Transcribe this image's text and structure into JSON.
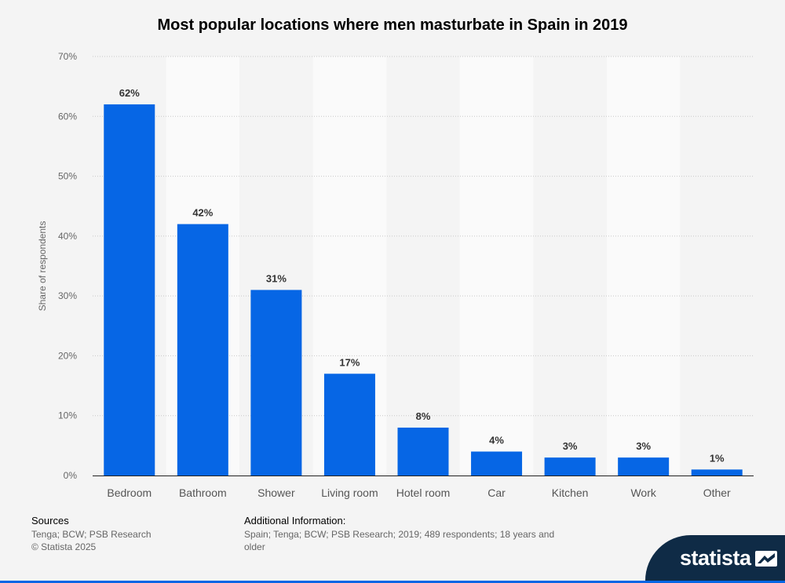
{
  "chart_data": {
    "type": "bar",
    "title": "Most popular locations where men masturbate in Spain in 2019",
    "xlabel": "",
    "ylabel": "Share of respondents",
    "categories": [
      "Bedroom",
      "Bathroom",
      "Shower",
      "Living room",
      "Hotel room",
      "Car",
      "Kitchen",
      "Work",
      "Other"
    ],
    "values": [
      62,
      42,
      31,
      17,
      8,
      4,
      3,
      3,
      1
    ],
    "data_labels": [
      "62%",
      "42%",
      "31%",
      "17%",
      "8%",
      "4%",
      "3%",
      "3%",
      "1%"
    ],
    "ylim": [
      0,
      70
    ],
    "yticks": [
      0,
      10,
      20,
      30,
      40,
      50,
      60,
      70
    ],
    "ytick_labels": [
      "0%",
      "10%",
      "20%",
      "30%",
      "40%",
      "50%",
      "60%",
      "70%"
    ],
    "grid": true,
    "bar_color": "#0666e5"
  },
  "footer": {
    "sources_heading": "Sources",
    "sources_line1": "Tenga; BCW; PSB Research",
    "sources_line2": "© Statista 2025",
    "additional_heading": "Additional Information:",
    "additional_text": "Spain; Tenga; BCW; PSB Research; 2019; 489 respondents; 18 years and older"
  },
  "brand": {
    "name": "statista"
  },
  "colors": {
    "accent": "#0666e5",
    "brand_bg": "#0f2b46"
  }
}
